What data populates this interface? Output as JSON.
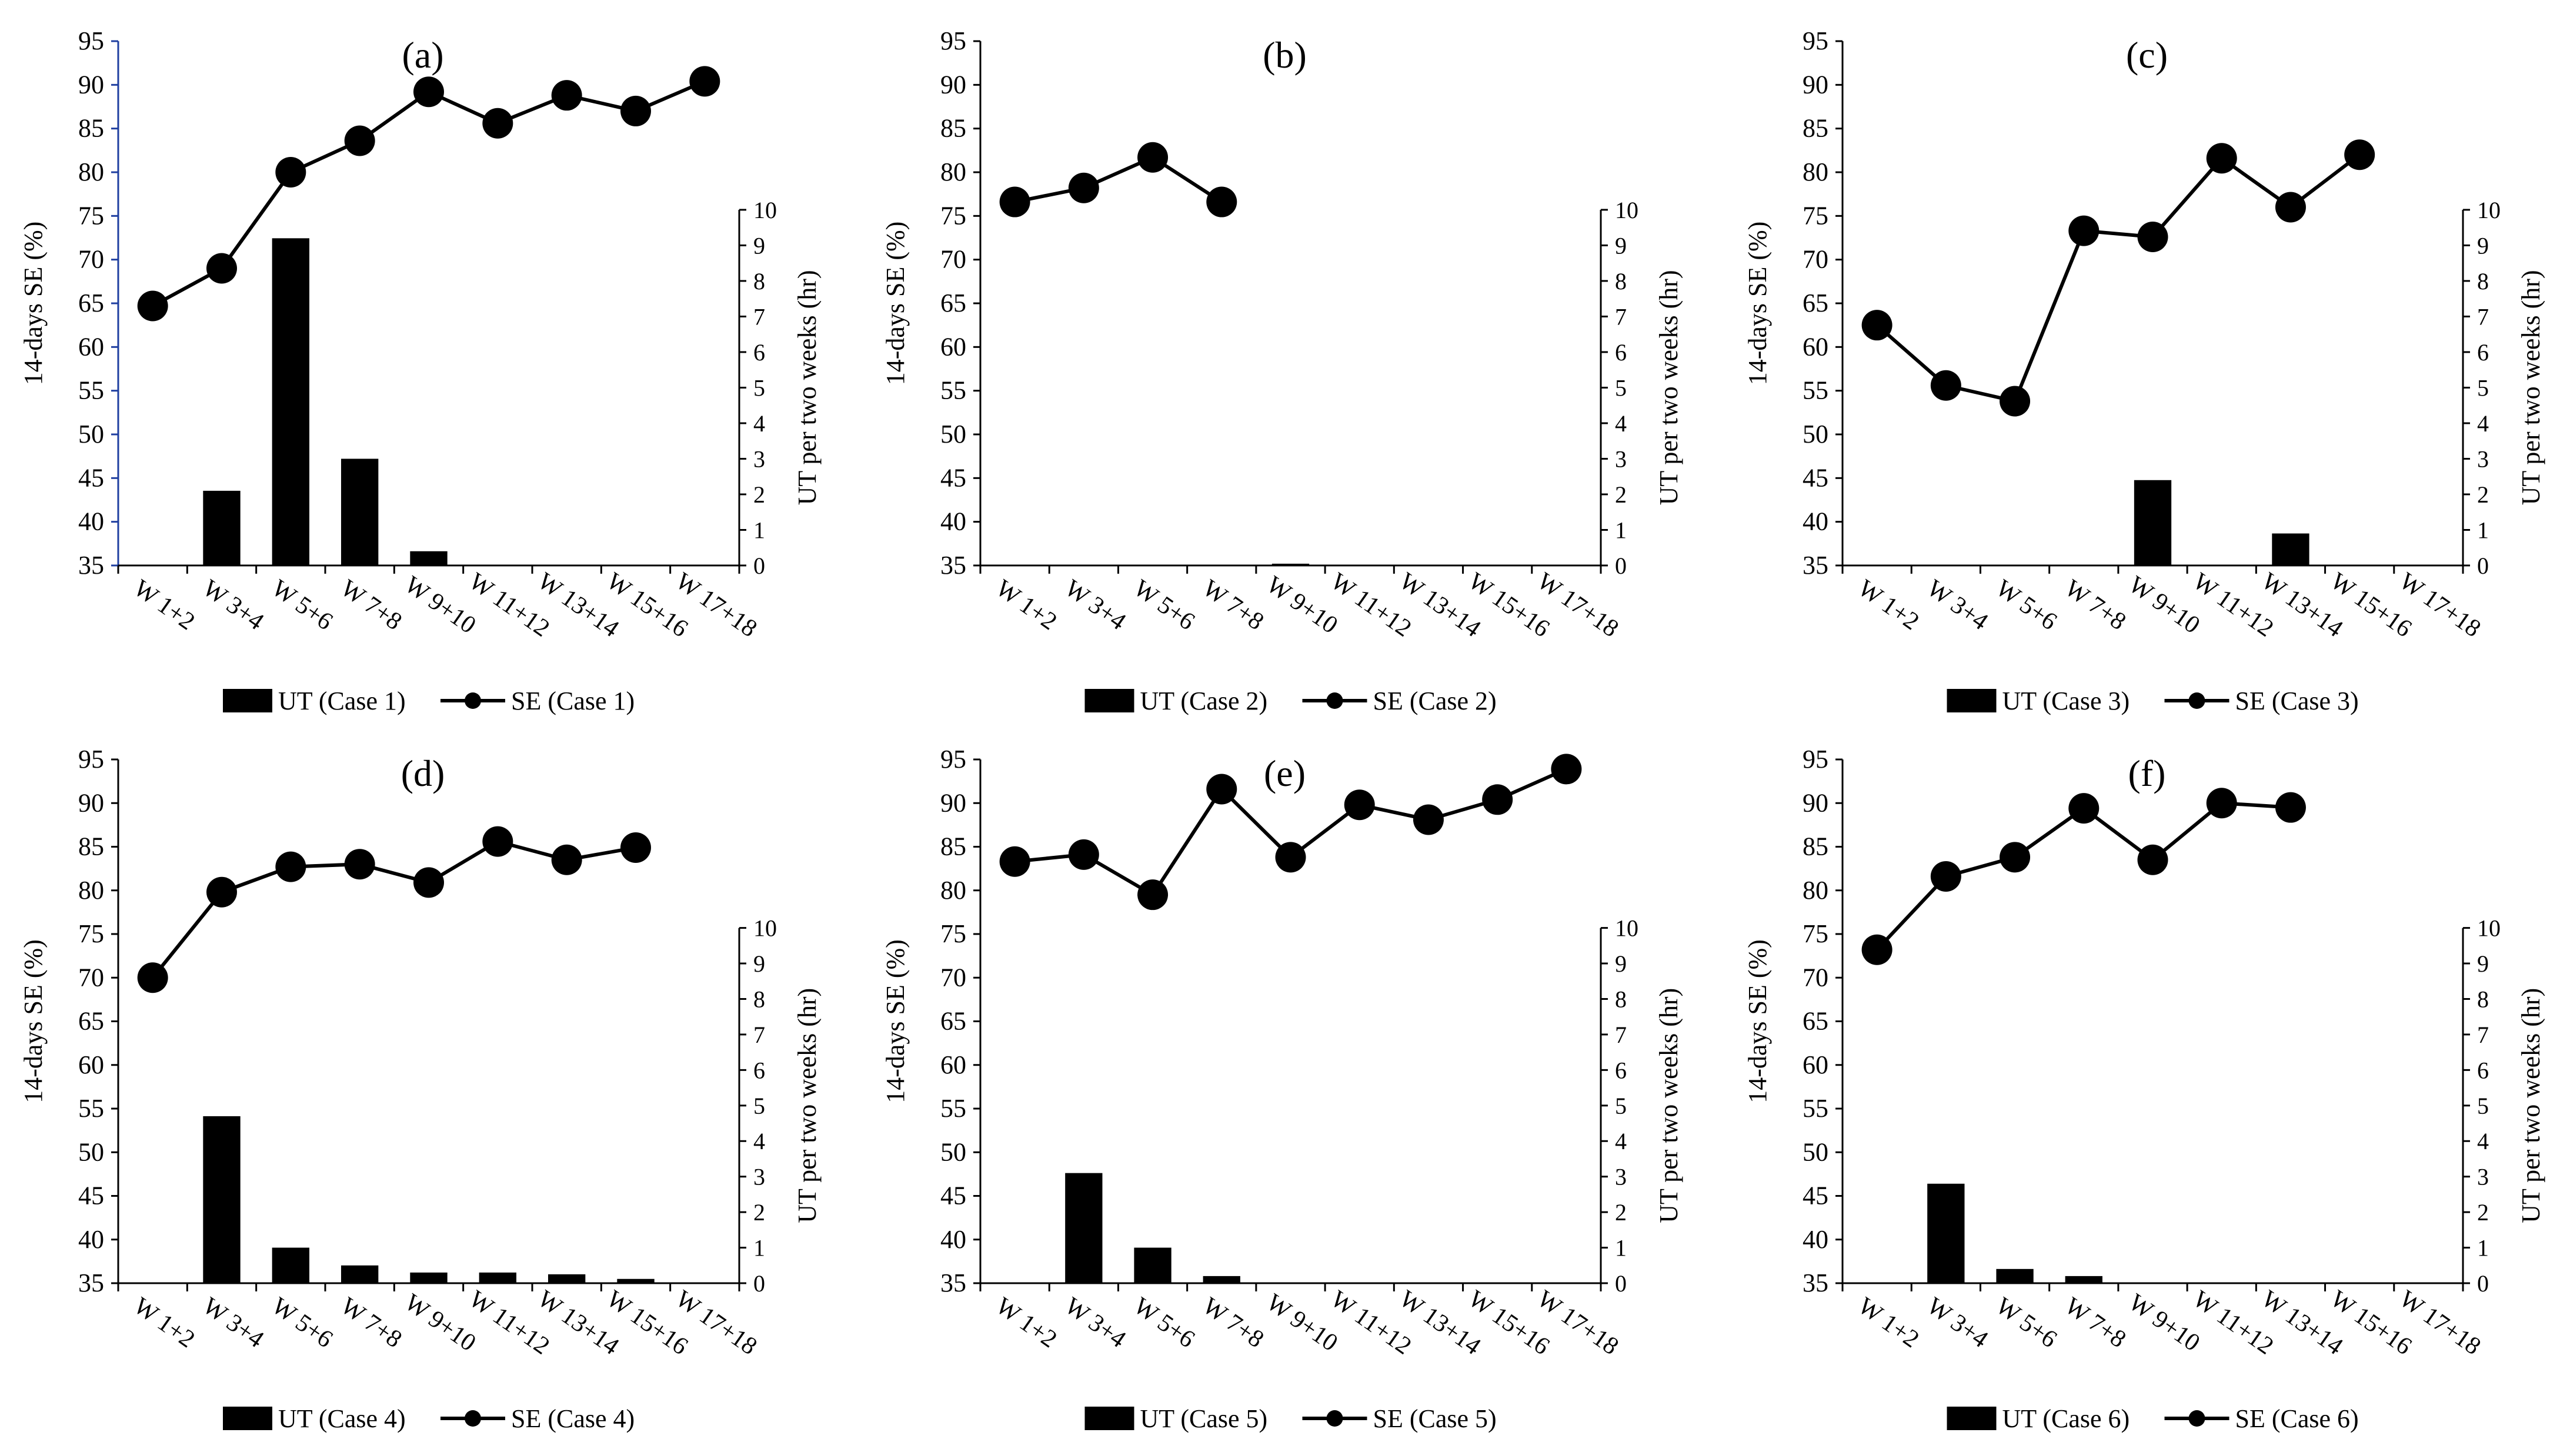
{
  "figure": {
    "panels": [
      {
        "tag": "(a)",
        "bar_legend": "UT (Case 1)",
        "line_legend": "SE (Case 1)"
      },
      {
        "tag": "(b)",
        "bar_legend": "UT (Case 2)",
        "line_legend": "SE (Case 2)"
      },
      {
        "tag": "(c)",
        "bar_legend": "UT (Case 3)",
        "line_legend": "SE (Case 3)"
      },
      {
        "tag": "(d)",
        "bar_legend": "UT (Case 4)",
        "line_legend": "SE (Case 4)"
      },
      {
        "tag": "(e)",
        "bar_legend": "UT (Case 5)",
        "line_legend": "SE (Case 5)"
      },
      {
        "tag": "(f)",
        "bar_legend": "UT (Case 6)",
        "line_legend": "SE (Case 6)"
      }
    ]
  },
  "chart_data": [
    {
      "type": "bar",
      "title": "(a)",
      "categories": [
        "W 1+2",
        "W 3+4",
        "W 5+6",
        "W 7+8",
        "W 9+10",
        "W 11+12",
        "W 13+14",
        "W 15+16",
        "W 17+18"
      ],
      "ylabel": "14-days SE (%)",
      "y2label": "UT per two weeks (hr)",
      "ylim": [
        35,
        95
      ],
      "y2lim": [
        0,
        10
      ],
      "yticks": [
        "35",
        "40",
        "45",
        "50",
        "55",
        "60",
        "65",
        "70",
        "75",
        "80",
        "85",
        "90",
        "95"
      ],
      "y2ticks": [
        "0",
        "1",
        "2",
        "3",
        "4",
        "5",
        "6",
        "7",
        "8",
        "9",
        "10"
      ],
      "series": [
        {
          "name": "UT (Case 1)",
          "type": "bar",
          "axis": "right",
          "values": [
            0,
            2.1,
            9.2,
            3.0,
            0.4,
            0,
            0,
            0,
            0
          ]
        },
        {
          "name": "SE (Case 1)",
          "type": "line",
          "axis": "left",
          "values": [
            64.7,
            69.0,
            80.0,
            83.6,
            89.2,
            85.6,
            88.8,
            87.0,
            90.4
          ]
        }
      ],
      "colors": {
        "bar": "#000000",
        "line": "#000000",
        "left_axis": "#1f3fa0"
      }
    },
    {
      "type": "bar",
      "title": "(b)",
      "categories": [
        "W 1+2",
        "W 3+4",
        "W 5+6",
        "W 7+8",
        "W 9+10",
        "W 11+12",
        "W 13+14",
        "W 15+16",
        "W 17+18"
      ],
      "ylabel": "14-days SE (%)",
      "y2label": "UT per two weeks (hr)",
      "ylim": [
        35,
        95
      ],
      "y2lim": [
        0,
        10
      ],
      "yticks": [
        "35",
        "40",
        "45",
        "50",
        "55",
        "60",
        "65",
        "70",
        "75",
        "80",
        "85",
        "90",
        "95"
      ],
      "y2ticks": [
        "0",
        "1",
        "2",
        "3",
        "4",
        "5",
        "6",
        "7",
        "8",
        "9",
        "10"
      ],
      "series": [
        {
          "name": "UT (Case 2)",
          "type": "bar",
          "axis": "right",
          "values": [
            0,
            0,
            0,
            0,
            0.05,
            0,
            0,
            0,
            0
          ]
        },
        {
          "name": "SE (Case 2)",
          "type": "line",
          "axis": "left",
          "values": [
            76.6,
            78.2,
            81.7,
            76.6,
            null,
            null,
            null,
            null,
            null
          ]
        }
      ],
      "colors": {
        "bar": "#000000",
        "line": "#000000",
        "left_axis": "#000000"
      }
    },
    {
      "type": "bar",
      "title": "(c)",
      "categories": [
        "W 1+2",
        "W 3+4",
        "W 5+6",
        "W 7+8",
        "W 9+10",
        "W 11+12",
        "W 13+14",
        "W 15+16",
        "W 17+18"
      ],
      "ylabel": "14-days SE (%)",
      "y2label": "UT per two weeks (hr)",
      "ylim": [
        35,
        95
      ],
      "y2lim": [
        0,
        10
      ],
      "yticks": [
        "35",
        "40",
        "45",
        "50",
        "55",
        "60",
        "65",
        "70",
        "75",
        "80",
        "85",
        "90",
        "95"
      ],
      "y2ticks": [
        "0",
        "1",
        "2",
        "3",
        "4",
        "5",
        "6",
        "7",
        "8",
        "9",
        "10"
      ],
      "series": [
        {
          "name": "UT (Case 3)",
          "type": "bar",
          "axis": "right",
          "values": [
            0,
            0,
            0,
            0,
            2.4,
            0,
            0.9,
            0,
            0
          ]
        },
        {
          "name": "SE (Case 3)",
          "type": "line",
          "axis": "left",
          "values": [
            62.5,
            55.6,
            53.8,
            73.3,
            72.6,
            81.6,
            76.0,
            82.0,
            null
          ]
        }
      ],
      "colors": {
        "bar": "#000000",
        "line": "#000000",
        "left_axis": "#000000"
      }
    },
    {
      "type": "bar",
      "title": "(d)",
      "categories": [
        "W 1+2",
        "W 3+4",
        "W 5+6",
        "W 7+8",
        "W 9+10",
        "W 11+12",
        "W 13+14",
        "W 15+16",
        "W 17+18"
      ],
      "ylabel": "14-days SE (%)",
      "y2label": "UT per two weeks (hr)",
      "ylim": [
        35,
        95
      ],
      "y2lim": [
        0,
        10
      ],
      "yticks": [
        "35",
        "40",
        "45",
        "50",
        "55",
        "60",
        "65",
        "70",
        "75",
        "80",
        "85",
        "90",
        "95"
      ],
      "y2ticks": [
        "0",
        "1",
        "2",
        "3",
        "4",
        "5",
        "6",
        "7",
        "8",
        "9",
        "10"
      ],
      "series": [
        {
          "name": "UT (Case 4)",
          "type": "bar",
          "axis": "right",
          "values": [
            0,
            4.7,
            1.0,
            0.5,
            0.3,
            0.3,
            0.25,
            0.12,
            0
          ]
        },
        {
          "name": "SE (Case 4)",
          "type": "line",
          "axis": "left",
          "values": [
            70.0,
            79.8,
            82.7,
            83.0,
            80.9,
            85.6,
            83.5,
            84.9,
            null
          ]
        }
      ],
      "colors": {
        "bar": "#000000",
        "line": "#000000",
        "left_axis": "#000000"
      }
    },
    {
      "type": "bar",
      "title": "(e)",
      "categories": [
        "W 1+2",
        "W 3+4",
        "W 5+6",
        "W 7+8",
        "W 9+10",
        "W 11+12",
        "W 13+14",
        "W 15+16",
        "W 17+18"
      ],
      "ylabel": "14-days SE (%)",
      "y2label": "UT per two weeks (hr)",
      "ylim": [
        35,
        95
      ],
      "y2lim": [
        0,
        10
      ],
      "yticks": [
        "35",
        "40",
        "45",
        "50",
        "55",
        "60",
        "65",
        "70",
        "75",
        "80",
        "85",
        "90",
        "95"
      ],
      "y2ticks": [
        "0",
        "1",
        "2",
        "3",
        "4",
        "5",
        "6",
        "7",
        "8",
        "9",
        "10"
      ],
      "series": [
        {
          "name": "UT (Case 5)",
          "type": "bar",
          "axis": "right",
          "values": [
            0,
            3.1,
            1.0,
            0.2,
            0,
            0,
            0,
            0,
            0
          ]
        },
        {
          "name": "SE (Case 5)",
          "type": "line",
          "axis": "left",
          "values": [
            83.3,
            84.1,
            79.5,
            91.6,
            83.8,
            89.8,
            88.1,
            90.4,
            93.9
          ]
        }
      ],
      "colors": {
        "bar": "#000000",
        "line": "#000000",
        "left_axis": "#000000"
      }
    },
    {
      "type": "bar",
      "title": "(f)",
      "categories": [
        "W 1+2",
        "W 3+4",
        "W 5+6",
        "W 7+8",
        "W 9+10",
        "W 11+12",
        "W 13+14",
        "W 15+16",
        "W 17+18"
      ],
      "ylabel": "14-days SE (%)",
      "y2label": "UT per two weeks (hr)",
      "ylim": [
        35,
        95
      ],
      "y2lim": [
        0,
        10
      ],
      "yticks": [
        "35",
        "40",
        "45",
        "50",
        "55",
        "60",
        "65",
        "70",
        "75",
        "80",
        "85",
        "90",
        "95"
      ],
      "y2ticks": [
        "0",
        "1",
        "2",
        "3",
        "4",
        "5",
        "6",
        "7",
        "8",
        "9",
        "10"
      ],
      "series": [
        {
          "name": "UT (Case 6)",
          "type": "bar",
          "axis": "right",
          "values": [
            0,
            2.8,
            0.4,
            0.2,
            0,
            0,
            0,
            0,
            0
          ]
        },
        {
          "name": "SE (Case 6)",
          "type": "line",
          "axis": "left",
          "values": [
            73.2,
            81.6,
            83.8,
            89.4,
            83.5,
            90.0,
            89.5,
            null,
            null
          ]
        }
      ],
      "colors": {
        "bar": "#000000",
        "line": "#000000",
        "left_axis": "#000000"
      }
    }
  ]
}
